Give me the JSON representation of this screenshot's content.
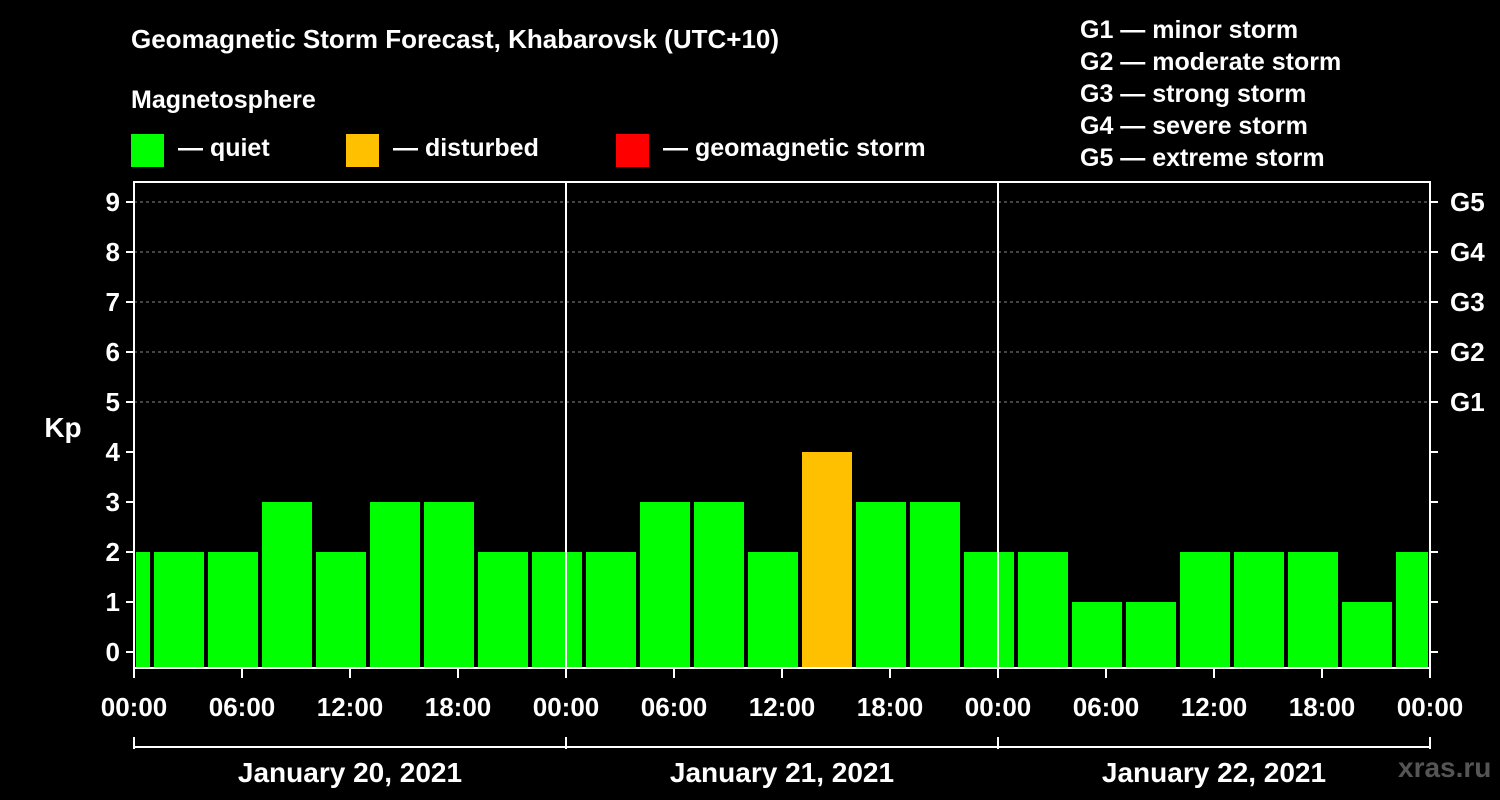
{
  "title": "Geomagnetic Storm Forecast, Khabarovsk (UTC+10)",
  "subtitle": "Magnetosphere",
  "legend": [
    {
      "label": "— quiet",
      "color": "#00ff00"
    },
    {
      "label": "— disturbed",
      "color": "#ffc000"
    },
    {
      "label": "— geomagnetic storm",
      "color": "#ff0000"
    }
  ],
  "g_levels": [
    "G1 — minor storm",
    "G2 — moderate storm",
    "G3 — strong storm",
    "G4 — severe storm",
    "G5 — extreme storm"
  ],
  "watermark": "xras.ru",
  "chart_data": {
    "type": "bar",
    "ylabel": "Kp",
    "ylim": [
      0,
      9
    ],
    "yticks": [
      0,
      1,
      2,
      3,
      4,
      5,
      6,
      7,
      8,
      9
    ],
    "right_ticks": [
      {
        "value": 5,
        "label": "G1"
      },
      {
        "value": 6,
        "label": "G2"
      },
      {
        "value": 7,
        "label": "G3"
      },
      {
        "value": 8,
        "label": "G4"
      },
      {
        "value": 9,
        "label": "G5"
      }
    ],
    "x_tick_labels": [
      "00:00",
      "06:00",
      "12:00",
      "18:00",
      "00:00",
      "06:00",
      "12:00",
      "18:00",
      "00:00",
      "06:00",
      "12:00",
      "18:00",
      "00:00"
    ],
    "days": [
      "January 20, 2021",
      "January 21, 2021",
      "January 22, 2021"
    ],
    "grid": "horizontal dashed at Kp 5–9",
    "bars": [
      {
        "start": "2021-01-20 00:00",
        "end": "2021-01-20 01:00",
        "kp": 2,
        "status": "quiet"
      },
      {
        "start": "2021-01-20 01:00",
        "end": "2021-01-20 04:00",
        "kp": 2,
        "status": "quiet"
      },
      {
        "start": "2021-01-20 04:00",
        "end": "2021-01-20 07:00",
        "kp": 2,
        "status": "quiet"
      },
      {
        "start": "2021-01-20 07:00",
        "end": "2021-01-20 10:00",
        "kp": 3,
        "status": "quiet"
      },
      {
        "start": "2021-01-20 10:00",
        "end": "2021-01-20 13:00",
        "kp": 2,
        "status": "quiet"
      },
      {
        "start": "2021-01-20 13:00",
        "end": "2021-01-20 16:00",
        "kp": 3,
        "status": "quiet"
      },
      {
        "start": "2021-01-20 16:00",
        "end": "2021-01-20 19:00",
        "kp": 3,
        "status": "quiet"
      },
      {
        "start": "2021-01-20 19:00",
        "end": "2021-01-20 22:00",
        "kp": 2,
        "status": "quiet"
      },
      {
        "start": "2021-01-20 22:00",
        "end": "2021-01-21 01:00",
        "kp": 2,
        "status": "quiet"
      },
      {
        "start": "2021-01-21 01:00",
        "end": "2021-01-21 04:00",
        "kp": 2,
        "status": "quiet"
      },
      {
        "start": "2021-01-21 04:00",
        "end": "2021-01-21 07:00",
        "kp": 3,
        "status": "quiet"
      },
      {
        "start": "2021-01-21 07:00",
        "end": "2021-01-21 10:00",
        "kp": 3,
        "status": "quiet"
      },
      {
        "start": "2021-01-21 10:00",
        "end": "2021-01-21 13:00",
        "kp": 2,
        "status": "quiet"
      },
      {
        "start": "2021-01-21 13:00",
        "end": "2021-01-21 16:00",
        "kp": 4,
        "status": "disturbed"
      },
      {
        "start": "2021-01-21 16:00",
        "end": "2021-01-21 19:00",
        "kp": 3,
        "status": "quiet"
      },
      {
        "start": "2021-01-21 19:00",
        "end": "2021-01-21 22:00",
        "kp": 3,
        "status": "quiet"
      },
      {
        "start": "2021-01-21 22:00",
        "end": "2021-01-22 01:00",
        "kp": 2,
        "status": "quiet"
      },
      {
        "start": "2021-01-22 01:00",
        "end": "2021-01-22 04:00",
        "kp": 2,
        "status": "quiet"
      },
      {
        "start": "2021-01-22 04:00",
        "end": "2021-01-22 07:00",
        "kp": 1,
        "status": "quiet"
      },
      {
        "start": "2021-01-22 07:00",
        "end": "2021-01-22 10:00",
        "kp": 1,
        "status": "quiet"
      },
      {
        "start": "2021-01-22 10:00",
        "end": "2021-01-22 13:00",
        "kp": 2,
        "status": "quiet"
      },
      {
        "start": "2021-01-22 13:00",
        "end": "2021-01-22 16:00",
        "kp": 2,
        "status": "quiet"
      },
      {
        "start": "2021-01-22 16:00",
        "end": "2021-01-22 19:00",
        "kp": 2,
        "status": "quiet"
      },
      {
        "start": "2021-01-22 19:00",
        "end": "2021-01-22 22:00",
        "kp": 1,
        "status": "quiet"
      },
      {
        "start": "2021-01-22 22:00",
        "end": "2021-01-23 00:00",
        "kp": 2,
        "status": "quiet"
      }
    ],
    "status_colors": {
      "quiet": "#00ff00",
      "disturbed": "#ffc000",
      "storm": "#ff0000"
    }
  }
}
